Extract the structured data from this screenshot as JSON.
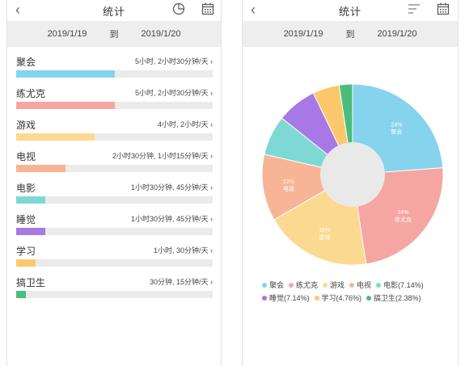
{
  "left": {
    "title": "统计",
    "back_icon": "chevron-left-icon",
    "start_date": "2019/1/19",
    "to_label": "到",
    "end_date": "2019/1/20",
    "rows": [
      {
        "label": "聚会",
        "duration": "5小时, 2小时30分钟/天 ›",
        "ratio": 0.5,
        "color": "#86d3ee"
      },
      {
        "label": "练尤克",
        "duration": "5小时, 2小时30分钟/天 ›",
        "ratio": 0.5,
        "color": "#f6a6a2"
      },
      {
        "label": "游戏",
        "duration": "4小时, 2小时/天 ›",
        "ratio": 0.4,
        "color": "#fcd990"
      },
      {
        "label": "电视",
        "duration": "2小时30分钟, 1小时15分钟/天 ›",
        "ratio": 0.25,
        "color": "#f7b596"
      },
      {
        "label": "电影",
        "duration": "1小时30分钟, 45分钟/天 ›",
        "ratio": 0.15,
        "color": "#7ed9d5"
      },
      {
        "label": "睡觉",
        "duration": "1小时30分钟, 45分钟/天 ›",
        "ratio": 0.15,
        "color": "#a878e6"
      },
      {
        "label": "学习",
        "duration": "1小时, 30分钟/天 ›",
        "ratio": 0.1,
        "color": "#fbc96b"
      },
      {
        "label": "搞卫生",
        "duration": "30分钟, 15分钟/天 ›",
        "ratio": 0.05,
        "color": "#4cbc7d"
      }
    ]
  },
  "right": {
    "title": "统计",
    "start_date": "2019/1/19",
    "to_label": "到",
    "end_date": "2019/1/20"
  },
  "chart_data": {
    "type": "pie",
    "donut": true,
    "slices": [
      {
        "name": "聚会",
        "value": 23.81,
        "color": "#86d3ee",
        "label": "24%",
        "sub": "聚会"
      },
      {
        "name": "练尤克",
        "value": 23.81,
        "color": "#f6a6a2",
        "label": "24%",
        "sub": "练尤克"
      },
      {
        "name": "游戏",
        "value": 19.05,
        "color": "#fcd990",
        "label": "19%",
        "sub": "游戏"
      },
      {
        "name": "电视",
        "value": 11.9,
        "color": "#f7b596",
        "label": "12%",
        "sub": "电视"
      },
      {
        "name": "电影",
        "value": 7.14,
        "color": "#7ed9d5",
        "label": "",
        "sub": ""
      },
      {
        "name": "睡觉",
        "value": 7.14,
        "color": "#a878e6",
        "label": "",
        "sub": ""
      },
      {
        "name": "学习",
        "value": 4.76,
        "color": "#fbc96b",
        "label": "",
        "sub": ""
      },
      {
        "name": "搞卫生",
        "value": 2.38,
        "color": "#4cbc7d",
        "label": "",
        "sub": ""
      }
    ],
    "legend": [
      {
        "text": "聚会",
        "color": "#86d3ee"
      },
      {
        "text": "练尤克",
        "color": "#f6a6a2"
      },
      {
        "text": "游戏",
        "color": "#fcd990"
      },
      {
        "text": "电视",
        "color": "#f7b596"
      },
      {
        "text": "电影(7.14%)",
        "color": "#7ed9d5"
      },
      {
        "text": "睡觉(7.14%)",
        "color": "#a878e6"
      },
      {
        "text": "学习(4.76%)",
        "color": "#fbc96b"
      },
      {
        "text": "搞卫生(2.38%)",
        "color": "#4cbc7d"
      }
    ],
    "legend_position": "bottom"
  }
}
